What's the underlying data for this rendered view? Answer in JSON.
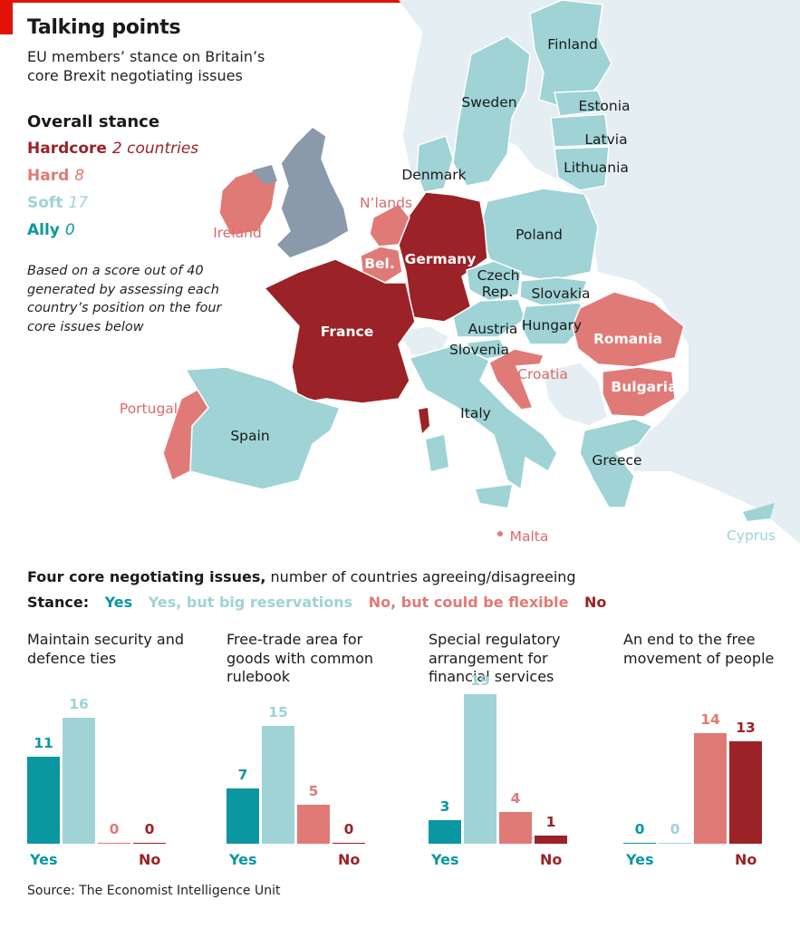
{
  "header": {
    "title": "Talking points",
    "subtitle": "EU members’ stance on Britain’s core Brexit negotiating issues"
  },
  "overall": {
    "heading": "Overall stance",
    "items": [
      {
        "label": "Hardcore",
        "count": "2 countries",
        "color": "#9b2226"
      },
      {
        "label": "Hard",
        "count": "8",
        "color": "#e07a77"
      },
      {
        "label": "Soft",
        "count": "17",
        "color": "#9fd3d5"
      },
      {
        "label": "Ally",
        "count": "0",
        "color": "#0b97a0"
      }
    ],
    "note": "Based on a score out of 40 generated by assessing each country’s position on the four core issues below"
  },
  "map_labels": {
    "finland": "Finland",
    "sweden": "Sweden",
    "estonia": "Estonia",
    "latvia": "Latvia",
    "lithuania": "Lithuania",
    "denmark": "Denmark",
    "nlands": "N’lands",
    "ireland": "Ireland",
    "poland": "Poland",
    "germany": "Germany",
    "bel": "Bel.",
    "czech1": "Czech",
    "czech2": "Rep.",
    "slovakia": "Slovakia",
    "hungary": "Hungary",
    "austria": "Austria",
    "slovenia": "Slovenia",
    "france": "France",
    "romania": "Romania",
    "croatia": "Croatia",
    "bulgaria": "Bulgaria",
    "portugal": "Portugal",
    "spain": "Spain",
    "italy": "Italy",
    "greece": "Greece",
    "malta": "Malta",
    "cyprus": "Cyprus"
  },
  "issues": {
    "heading_bold": "Four core negotiating issues,",
    "heading_rest": " number of countries agreeing/disagreeing",
    "stance_label": "Stance:",
    "stance_items": [
      "Yes",
      "Yes, but big reservations",
      "No, but could be flexible",
      "No"
    ],
    "yes_label": "Yes",
    "no_label": "No"
  },
  "chart_data": [
    {
      "type": "bar",
      "title": "Maintain security and defence ties",
      "categories": [
        "Yes",
        "Yes, but big reservations",
        "No, but could be flexible",
        "No"
      ],
      "values": [
        11,
        16,
        0,
        0
      ]
    },
    {
      "type": "bar",
      "title": "Free-trade area for goods with common rulebook",
      "categories": [
        "Yes",
        "Yes, but big reservations",
        "No, but could be flexible",
        "No"
      ],
      "values": [
        7,
        15,
        5,
        0
      ]
    },
    {
      "type": "bar",
      "title": "Special regulatory arrangement for financial services",
      "categories": [
        "Yes",
        "Yes, but big reservations",
        "No, but could be flexible",
        "No"
      ],
      "values": [
        3,
        19,
        4,
        1
      ]
    },
    {
      "type": "bar",
      "title": "An end to the free movement of people",
      "categories": [
        "Yes",
        "Yes, but big reservations",
        "No, but could be flexible",
        "No"
      ],
      "values": [
        0,
        0,
        14,
        13
      ]
    }
  ],
  "colors": {
    "yes": "#0b97a0",
    "yes_reservations": "#9fd3d5",
    "no_flexible": "#e07a77",
    "no": "#9b2226",
    "uk": "#8a9aaa",
    "non_eu": "#e4eef3"
  },
  "source": "Source: The Economist Intelligence Unit"
}
